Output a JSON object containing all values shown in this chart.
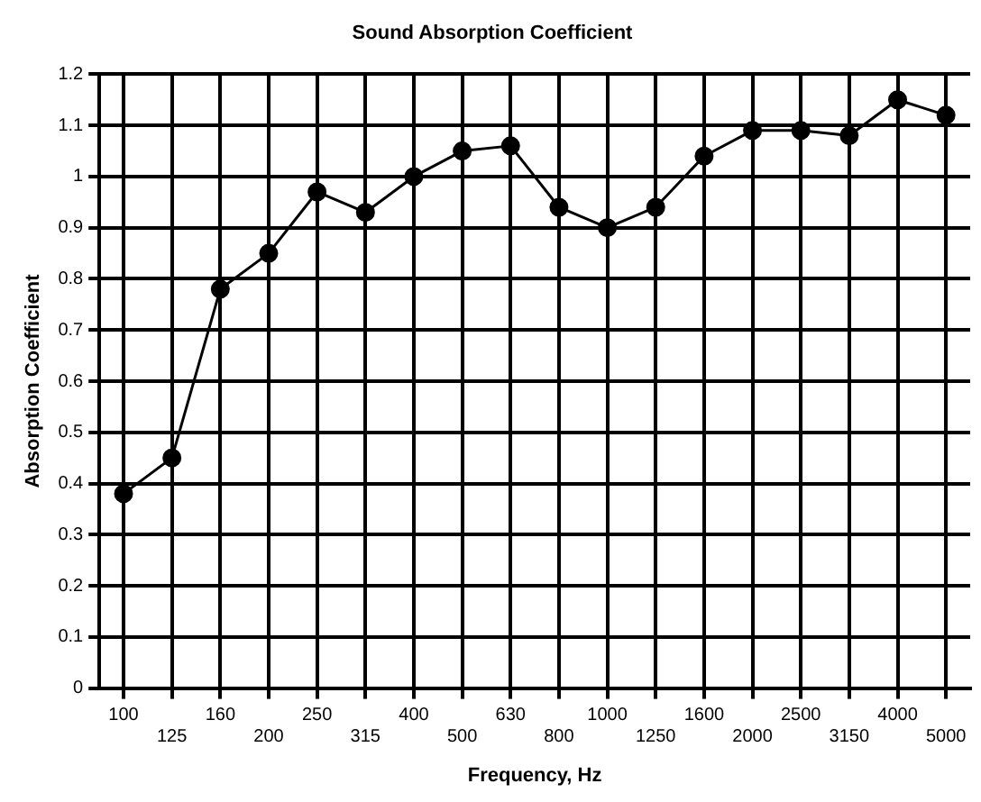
{
  "chart_data": {
    "type": "line",
    "title": "Sound Absorption Coefficient",
    "xlabel": "Frequency, Hz",
    "ylabel": "Absorption Coefficient",
    "categories": [
      "100",
      "125",
      "160",
      "200",
      "250",
      "315",
      "400",
      "500",
      "630",
      "800",
      "1000",
      "1250",
      "1600",
      "2000",
      "2500",
      "3150",
      "4000",
      "5000"
    ],
    "series": [
      {
        "color": "#000000",
        "values": [
          0.38,
          0.45,
          0.78,
          0.85,
          0.97,
          0.93,
          1.0,
          1.05,
          1.06,
          0.94,
          0.9,
          0.94,
          1.04,
          1.09,
          1.09,
          1.08,
          1.15,
          1.12
        ]
      }
    ],
    "ylim": [
      0,
      1.2
    ],
    "yticks": [
      0,
      0.1,
      0.2,
      0.3,
      0.4,
      0.5,
      0.6,
      0.7,
      0.8,
      0.9,
      1,
      1.1,
      1.2
    ],
    "grid": true,
    "legend": false,
    "marker": "circle",
    "line_style": "solid"
  }
}
